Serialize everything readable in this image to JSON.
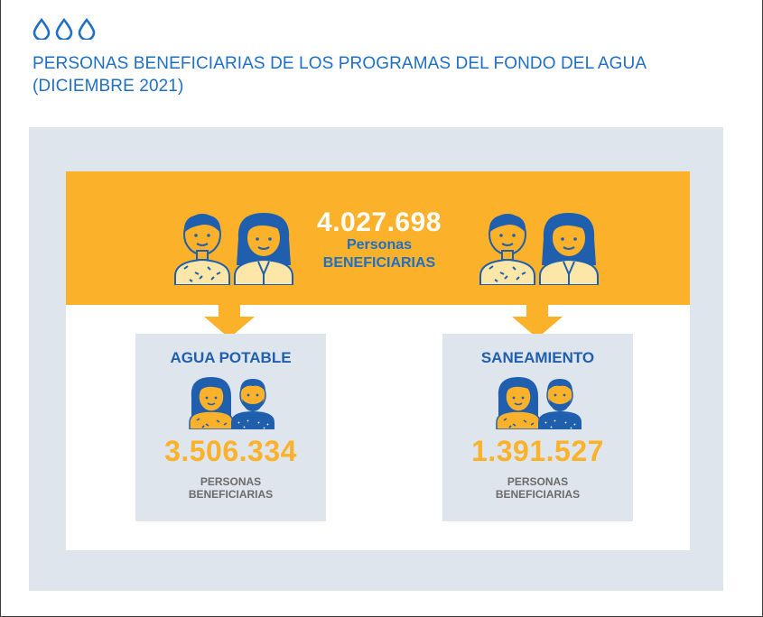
{
  "header": {
    "icon": "water-drops-icon",
    "title_line1": "PERSONAS BENEFICIARIAS DE LOS PROGRAMAS DEL FONDO DEL AGUA",
    "title_line2": "(DICIEMBRE 2021)"
  },
  "total": {
    "value": "4.027.698",
    "label_line1": "Personas",
    "label_line2": "BENEFICIARIAS"
  },
  "cards": [
    {
      "heading": "AGUA POTABLE",
      "value": "3.506.334",
      "label_line1": "PERSONAS",
      "label_line2": "BENEFICIARIAS"
    },
    {
      "heading": "SANEAMIENTO",
      "value": "1.391.527",
      "label_line1": "PERSONAS",
      "label_line2": "BENEFICIARIAS"
    }
  ],
  "colors": {
    "accent_orange": "#fbb12a",
    "brand_blue": "#1f6fc5",
    "panel_gray": "#dfe5ec"
  }
}
